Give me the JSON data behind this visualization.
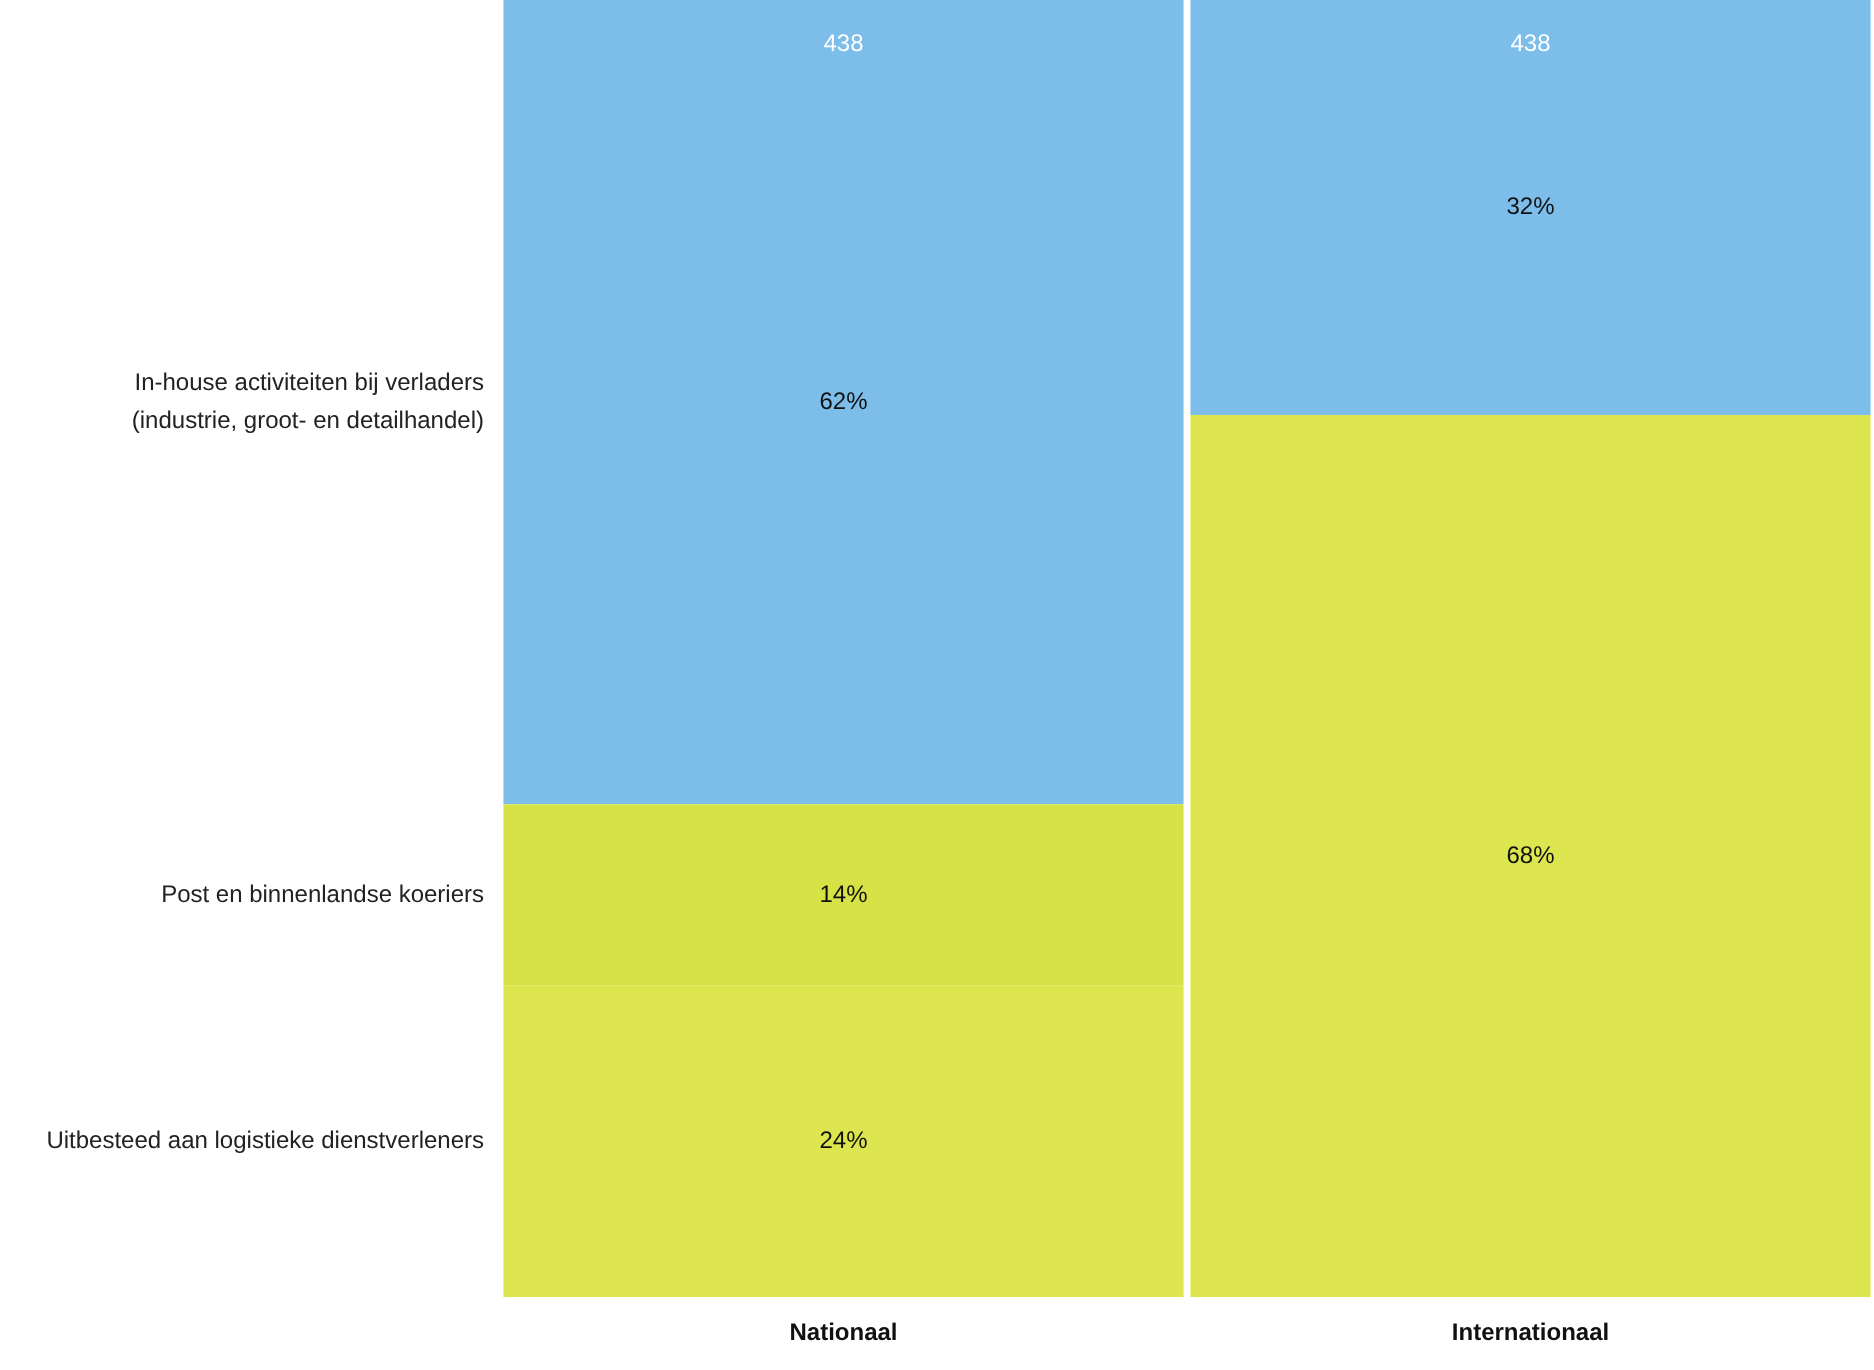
{
  "chart_data": {
    "type": "bar",
    "stacked": true,
    "categories": [
      "Nationaal",
      "Internationaal"
    ],
    "series": [
      {
        "name": "Uitbesteed aan logistieke dienstverleners",
        "color": "#dde64e",
        "values": [
          24,
          68
        ],
        "value_labels": [
          "24%",
          "68%"
        ]
      },
      {
        "name": "Post en binnenlandse koeriers",
        "color": "#d6e245",
        "values": [
          14,
          null
        ],
        "value_labels": [
          "14%",
          null
        ]
      },
      {
        "name": "In-house activiteiten bij verladers (industrie, groot- en detailhandel)",
        "color": "#7cbde9",
        "values": [
          62,
          32
        ],
        "value_labels": [
          "62%",
          "32%"
        ]
      }
    ],
    "legend": false,
    "grid": false,
    "tick_labels": "x",
    "annotations": [
      "438",
      "438"
    ]
  }
}
